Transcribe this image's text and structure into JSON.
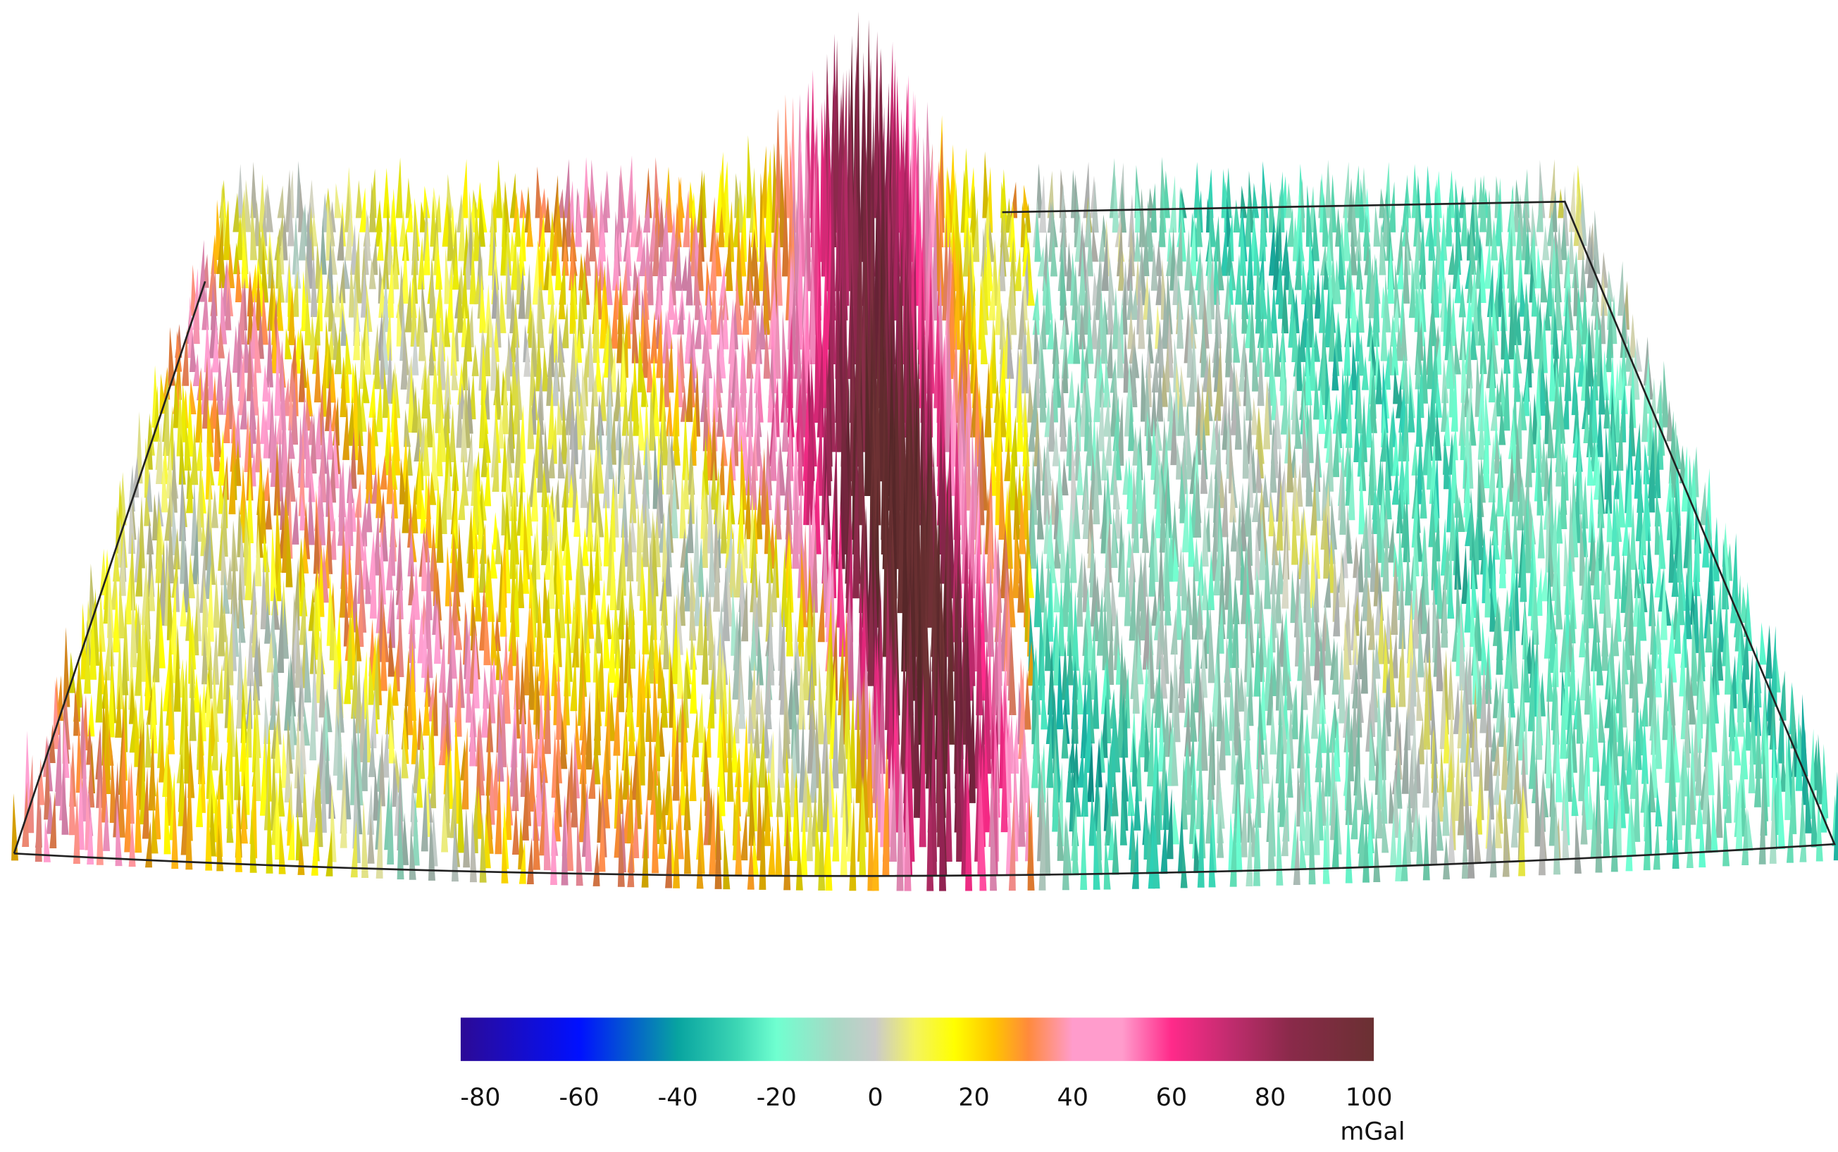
{
  "chart_data": {
    "type": "surface3d",
    "colorbar": {
      "lim": [
        -84,
        101
      ],
      "ticks": [
        -80,
        -60,
        -40,
        -20,
        0,
        20,
        40,
        60,
        80,
        100
      ],
      "label": "mGal",
      "colors": [
        {
          "value": -84,
          "color": "#2c0a96"
        },
        {
          "value": -60,
          "color": "#0010ff"
        },
        {
          "value": -40,
          "color": "#08a4a0"
        },
        {
          "value": -28,
          "color": "#3cd6b4"
        },
        {
          "value": -20,
          "color": "#70ffd0"
        },
        {
          "value": -8,
          "color": "#a8d8c4"
        },
        {
          "value": 0,
          "color": "#cacaca"
        },
        {
          "value": 8,
          "color": "#f4f460"
        },
        {
          "value": 16,
          "color": "#ffff00"
        },
        {
          "value": 24,
          "color": "#ffc400"
        },
        {
          "value": 31,
          "color": "#ff8a3c"
        },
        {
          "value": 40,
          "color": "#ff9ccc"
        },
        {
          "value": 50,
          "color": "#ff9ccc"
        },
        {
          "value": 60,
          "color": "#ff2a8a"
        },
        {
          "value": 72,
          "color": "#c02c6e"
        },
        {
          "value": 84,
          "color": "#8a2a4a"
        },
        {
          "value": 101,
          "color": "#6a3032"
        }
      ]
    }
  }
}
